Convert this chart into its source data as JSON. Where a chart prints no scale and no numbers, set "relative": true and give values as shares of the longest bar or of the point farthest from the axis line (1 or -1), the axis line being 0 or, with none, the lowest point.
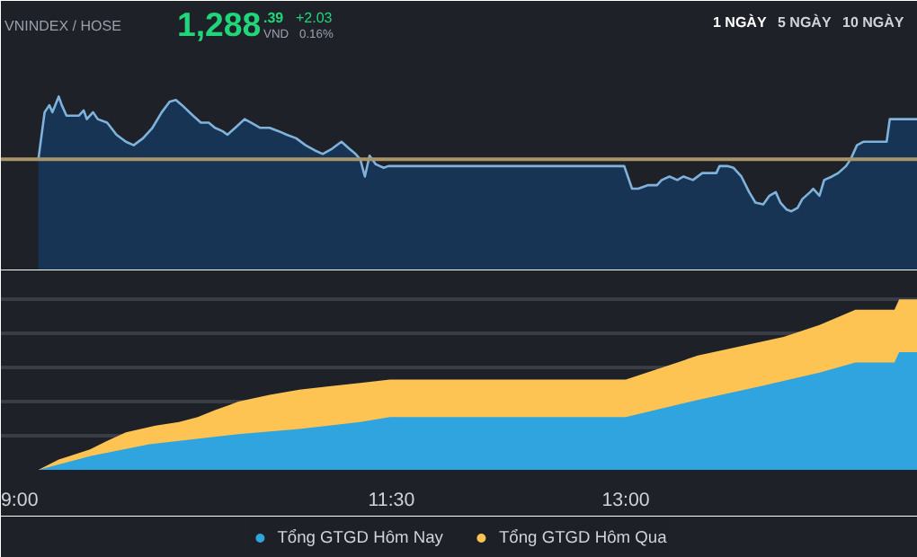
{
  "chart_data": [
    {
      "type": "area",
      "relative": true,
      "grid": false,
      "annotations": [
        "VNINDEX / HOSE",
        "1,288",
        ".39",
        "VND",
        "+2.03",
        "0.16%",
        "1 NGÀY",
        "5 NGÀY",
        "10 NGÀY"
      ],
      "xlim": [
        9,
        14.87
      ],
      "ref_lines": [
        {
          "axis": "y",
          "value": 0.64,
          "color": "#a8966a"
        }
      ],
      "series": [
        {
          "color": "#7fb3dc",
          "x": [
            9.24,
            9.28,
            9.31,
            9.33,
            9.37,
            9.39,
            9.42,
            9.45,
            9.5,
            9.53,
            9.55,
            9.59,
            9.62,
            9.68,
            9.74,
            9.8,
            9.85,
            9.91,
            9.97,
            10.03,
            10.08,
            10.12,
            10.16,
            10.23,
            10.28,
            10.33,
            10.37,
            10.42,
            10.45,
            10.5,
            10.56,
            10.6,
            10.66,
            10.72,
            10.78,
            10.83,
            10.89,
            10.95,
            11.01,
            11.06,
            11.12,
            11.18,
            11.23,
            11.27,
            11.3,
            11.33,
            11.36,
            11.4,
            11.45,
            11.48,
            12.99,
            13.04,
            13.08,
            13.14,
            13.2,
            13.23,
            13.28,
            13.33,
            13.37,
            13.43,
            13.49,
            13.54,
            13.58,
            13.6,
            13.65,
            13.69,
            13.74,
            13.79,
            13.83,
            13.88,
            13.92,
            13.96,
            13.99,
            14.03,
            14.06,
            14.1,
            14.13,
            14.18,
            14.2,
            14.24,
            14.27,
            14.32,
            14.36,
            14.41,
            14.44,
            14.48,
            14.52,
            14.67,
            14.69,
            14.87
          ],
          "values": [
            0.64,
            0.91,
            0.95,
            0.91,
            1.0,
            0.95,
            0.89,
            0.89,
            0.89,
            0.92,
            0.87,
            0.91,
            0.87,
            0.85,
            0.78,
            0.74,
            0.72,
            0.76,
            0.82,
            0.91,
            0.97,
            0.98,
            0.95,
            0.89,
            0.85,
            0.85,
            0.82,
            0.8,
            0.78,
            0.82,
            0.87,
            0.85,
            0.82,
            0.82,
            0.8,
            0.78,
            0.76,
            0.72,
            0.69,
            0.67,
            0.7,
            0.74,
            0.7,
            0.67,
            0.64,
            0.54,
            0.66,
            0.61,
            0.59,
            0.6,
            0.6,
            0.47,
            0.47,
            0.49,
            0.49,
            0.52,
            0.54,
            0.52,
            0.54,
            0.52,
            0.56,
            0.56,
            0.56,
            0.6,
            0.6,
            0.59,
            0.54,
            0.45,
            0.39,
            0.38,
            0.43,
            0.45,
            0.39,
            0.35,
            0.34,
            0.36,
            0.41,
            0.45,
            0.47,
            0.43,
            0.52,
            0.54,
            0.56,
            0.6,
            0.64,
            0.72,
            0.74,
            0.74,
            0.87,
            0.87
          ]
        }
      ]
    },
    {
      "type": "area",
      "relative": true,
      "grid": "y",
      "legend": "bottom",
      "xlim": [
        9,
        14.87
      ],
      "xticks": [
        {
          "value": 9,
          "label": "9:00"
        },
        {
          "value": 11.5,
          "label": "11:30"
        },
        {
          "value": 13,
          "label": "13:00"
        }
      ],
      "series": [
        {
          "name": "Tổng GTGD Hôm Qua",
          "color": "#fdc453",
          "x": [
            9.0,
            9.24,
            9.37,
            9.57,
            9.68,
            9.8,
            9.99,
            10.14,
            10.26,
            10.37,
            10.52,
            10.72,
            10.91,
            11.1,
            11.3,
            11.49,
            13.0,
            13.2,
            13.46,
            13.66,
            14.01,
            14.24,
            14.47,
            14.72,
            14.75,
            14.87
          ],
          "values": [
            0,
            0,
            0.06,
            0.12,
            0.17,
            0.22,
            0.26,
            0.28,
            0.31,
            0.35,
            0.4,
            0.44,
            0.47,
            0.49,
            0.51,
            0.53,
            0.53,
            0.59,
            0.67,
            0.71,
            0.78,
            0.85,
            0.94,
            0.94,
            1.0,
            1.0
          ]
        },
        {
          "name": "Tổng GTGD Hôm Nay",
          "color": "#2fa4de",
          "x": [
            9.0,
            9.24,
            9.57,
            9.95,
            10.14,
            10.52,
            10.91,
            11.3,
            11.49,
            13.0,
            13.46,
            13.86,
            14.24,
            14.47,
            14.72,
            14.75,
            14.87
          ],
          "values": [
            0,
            0,
            0.08,
            0.15,
            0.17,
            0.21,
            0.24,
            0.28,
            0.31,
            0.31,
            0.41,
            0.49,
            0.57,
            0.63,
            0.63,
            0.69,
            0.69
          ]
        }
      ]
    }
  ]
}
